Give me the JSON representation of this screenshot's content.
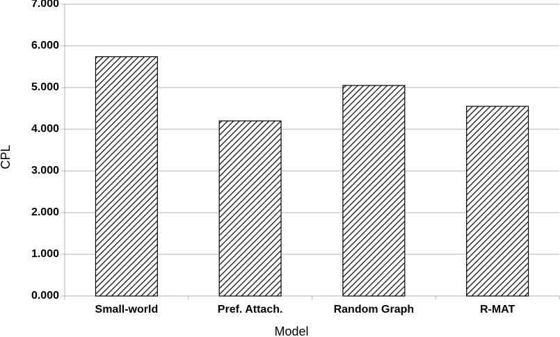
{
  "chart_data": {
    "type": "bar",
    "x_label": "Model",
    "y_label": "CPL",
    "categories": [
      "Small-world",
      "Pref. Attach.",
      "Random Graph",
      "R-MAT"
    ],
    "values": [
      5.74,
      4.2,
      5.05,
      4.55
    ],
    "color": "#000000",
    "ylim": [
      0,
      7
    ],
    "yticks": [
      {
        "value": 0,
        "label": "0.000"
      },
      {
        "value": 1,
        "label": "1.000"
      },
      {
        "value": 2,
        "label": "2.000"
      },
      {
        "value": 3,
        "label": "3.000"
      },
      {
        "value": 4,
        "label": "4.000"
      },
      {
        "value": 5,
        "label": "5.000"
      },
      {
        "value": 6,
        "label": "6.000"
      },
      {
        "value": 7,
        "label": "7.000"
      }
    ],
    "grid": true
  }
}
